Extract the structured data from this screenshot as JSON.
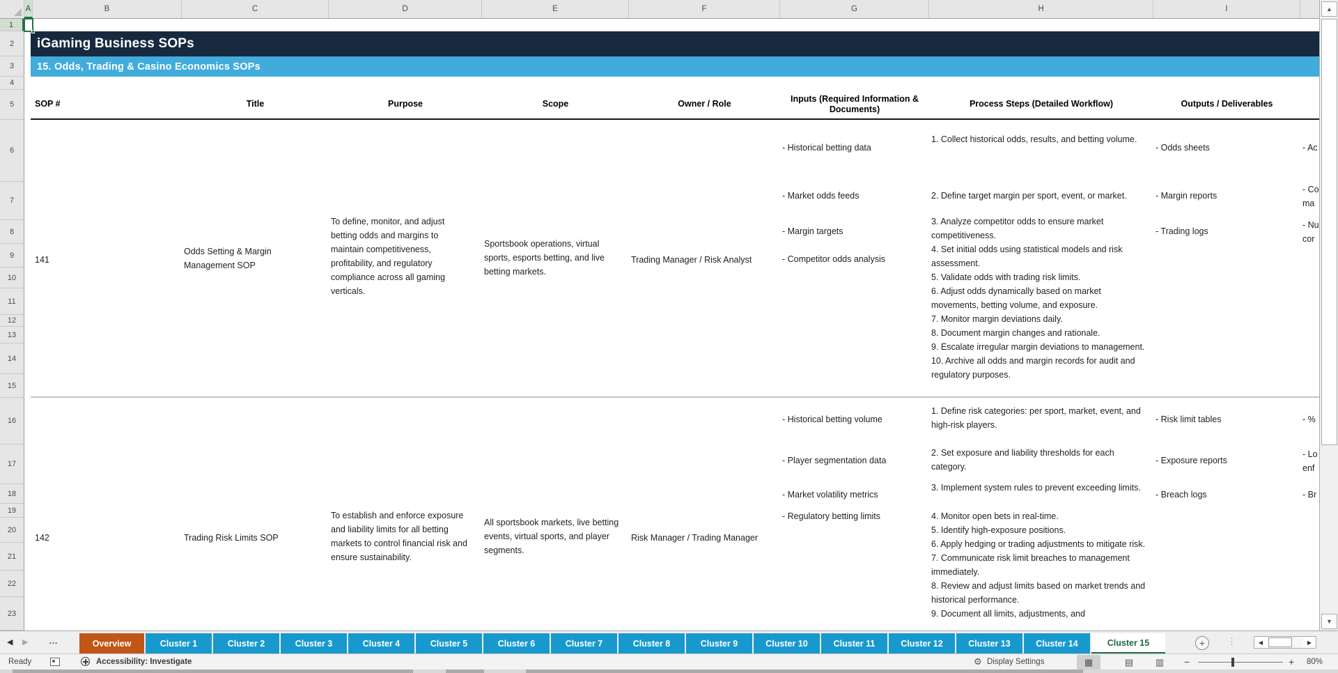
{
  "colors": {
    "banner_navy": "#16293F",
    "banner_blue": "#41ACDC",
    "tab_blue": "#1899CE",
    "tab_orange": "#C05617",
    "active_tab_green": "#1C6B4C",
    "selection_green": "#217346"
  },
  "icons": {
    "select_all": "corner-triangle",
    "nav_left": "◀",
    "nav_right": "▶",
    "sheet_overflow_dots": "…",
    "scroll_up": "▲",
    "scroll_down": "▼",
    "add_sheet": "+",
    "more_vertical": "⋮",
    "macro_record": "macro-sheet-icon",
    "accessibility": "accessibility-icon",
    "display_settings": "⚙",
    "view_normal": "▦",
    "view_page_layout": "▤",
    "view_page_break": "▥",
    "zoom_out": "−",
    "zoom_in": "+"
  },
  "sheet": {
    "title_banner": "iGaming Business SOPs",
    "subtitle_banner": "15. Odds, Trading & Casino Economics SOPs",
    "column_letters": [
      "A",
      "B",
      "C",
      "D",
      "E",
      "F",
      "G",
      "H",
      "I"
    ],
    "row_numbers": [
      "1",
      "2",
      "3",
      "4",
      "5",
      "6",
      "7",
      "8",
      "9",
      "10",
      "11",
      "12",
      "13",
      "14",
      "15",
      "16",
      "17",
      "18",
      "19",
      "20",
      "21",
      "22",
      "23"
    ],
    "table": {
      "headers": {
        "sop": "SOP #",
        "title": "Title",
        "purpose": "Purpose",
        "scope": "Scope",
        "owner": "Owner / Role",
        "inputs": "Inputs (Required Information & Documents)",
        "steps": "Process Steps (Detailed Workflow)",
        "outputs": "Outputs / Deliverables"
      },
      "rows": [
        {
          "sop": "141",
          "title": "Odds Setting & Margin Management SOP",
          "purpose": "To define, monitor, and adjust betting odds and margins to maintain competitiveness, profitability, and regulatory compliance across all gaming verticals.",
          "scope": "Sportsbook operations, virtual sports, esports betting, and live betting markets.",
          "owner": "Trading Manager / Risk Analyst",
          "inputs": [
            "- Historical betting data",
            "- Market odds feeds",
            "- Margin targets",
            "- Competitor odds analysis"
          ],
          "step_blocks": [
            "1. Collect historical odds, results, and betting volume.",
            "2. Define target margin per sport, event, or market.",
            "3. Analyze competitor odds to ensure market competitiveness.\n4. Set initial odds using statistical models and risk assessment.\n5. Validate odds with trading risk limits.\n6. Adjust odds dynamically based on market movements, betting volume, and exposure.\n7. Monitor margin deviations daily.\n8. Document margin changes and rationale.\n9. Escalate irregular margin deviations to management.\n10. Archive all odds and margin records for audit and regulatory purposes."
          ],
          "outputs": [
            "- Odds sheets",
            "- Margin reports",
            "- Trading logs"
          ],
          "kpis_truncated": [
            "- Ac",
            "- Co\nma",
            "- Nu\ncor"
          ]
        },
        {
          "sop": "142",
          "title": "Trading Risk Limits SOP",
          "purpose": "To establish and enforce exposure and liability limits for all betting markets to control financial risk and ensure sustainability.",
          "scope": "All sportsbook markets, live betting events, virtual sports, and player segments.",
          "owner": "Risk Manager / Trading Manager",
          "inputs": [
            "- Historical betting volume",
            "- Player segmentation data",
            "- Market volatility metrics",
            "- Regulatory betting limits"
          ],
          "step_blocks": [
            "1. Define risk categories: per sport, market, event, and high-risk players.",
            "2. Set exposure and liability thresholds for each category.",
            "3. Implement system rules to prevent exceeding limits.",
            "4. Monitor open bets in real-time.\n5. Identify high-exposure positions.\n6. Apply hedging or trading adjustments to mitigate risk.\n7. Communicate risk limit breaches to management immediately.\n8. Review and adjust limits based on market trends and historical performance.\n9. Document all limits, adjustments, and"
          ],
          "outputs": [
            "- Risk limit tables",
            "- Exposure reports",
            "- Breach logs"
          ],
          "kpis_truncated": [
            "- %",
            "- Lo\nenf",
            "- Br"
          ]
        }
      ]
    }
  },
  "tabs": {
    "items": [
      {
        "label": "Overview",
        "style": "overview"
      },
      {
        "label": "Cluster 1",
        "style": "cluster"
      },
      {
        "label": "Cluster 2",
        "style": "cluster"
      },
      {
        "label": "Cluster 3",
        "style": "cluster"
      },
      {
        "label": "Cluster 4",
        "style": "cluster"
      },
      {
        "label": "Cluster 5",
        "style": "cluster"
      },
      {
        "label": "Cluster 6",
        "style": "cluster"
      },
      {
        "label": "Cluster 7",
        "style": "cluster"
      },
      {
        "label": "Cluster 8",
        "style": "cluster"
      },
      {
        "label": "Cluster 9",
        "style": "cluster"
      },
      {
        "label": "Cluster 10",
        "style": "cluster"
      },
      {
        "label": "Cluster 11",
        "style": "cluster"
      },
      {
        "label": "Cluster 12",
        "style": "cluster"
      },
      {
        "label": "Cluster 13",
        "style": "cluster"
      },
      {
        "label": "Cluster 14",
        "style": "cluster"
      },
      {
        "label": "Cluster 15",
        "style": "active"
      }
    ]
  },
  "status_bar": {
    "ready": "Ready",
    "accessibility_label": "Accessibility: Investigate",
    "display_settings": "Display Settings",
    "zoom_percent": "80%"
  }
}
